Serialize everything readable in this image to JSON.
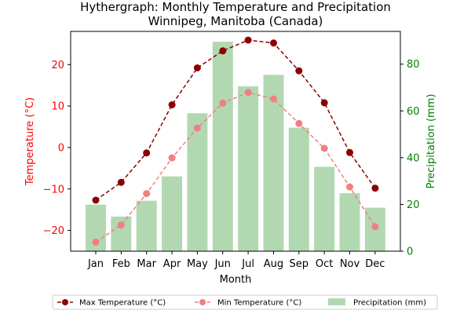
{
  "chart_data": {
    "type": "bar+line",
    "title": "Hythergraph: Monthly Temperature and Precipitation",
    "subtitle": "Winnipeg, Manitoba (Canada)",
    "xlabel": "Month",
    "ylabel_left": "Temperature (°C)",
    "ylabel_right": "Precipitation (mm)",
    "categories": [
      "Jan",
      "Feb",
      "Mar",
      "Apr",
      "May",
      "Jun",
      "Jul",
      "Aug",
      "Sep",
      "Oct",
      "Nov",
      "Dec"
    ],
    "ylim_left": [
      -25,
      28
    ],
    "ylim_right": [
      0,
      94
    ],
    "yticks_left": [
      -20,
      -10,
      0,
      10,
      20
    ],
    "yticks_right": [
      0,
      20,
      40,
      60,
      80
    ],
    "series": [
      {
        "name": "Max Temperature (°C)",
        "kind": "line",
        "axis": "left",
        "style": "dashed",
        "marker": "circle",
        "color": "#8b0000",
        "values": [
          -12.7,
          -8.4,
          -1.3,
          10.3,
          19.2,
          23.3,
          25.9,
          25.2,
          18.5,
          10.8,
          -1.2,
          -9.8
        ]
      },
      {
        "name": "Min Temperature (°C)",
        "kind": "line",
        "axis": "left",
        "style": "dashed",
        "marker": "circle",
        "color": "#f08080",
        "values": [
          -22.8,
          -18.7,
          -11.1,
          -2.5,
          4.7,
          10.7,
          13.3,
          11.7,
          5.8,
          -0.2,
          -9.5,
          -19.1
        ]
      },
      {
        "name": "Precipitation (mm)",
        "kind": "bar",
        "axis": "right",
        "color": "#b2d8b2",
        "values": [
          19.9,
          14.8,
          21.6,
          32.0,
          59.0,
          89.6,
          70.5,
          75.4,
          52.8,
          36.1,
          24.8,
          18.6
        ]
      }
    ],
    "grid": false,
    "legend_position": "bottom"
  },
  "colors": {
    "left_axis": "#ff0000",
    "right_axis": "#008000",
    "axis": "#000000"
  }
}
